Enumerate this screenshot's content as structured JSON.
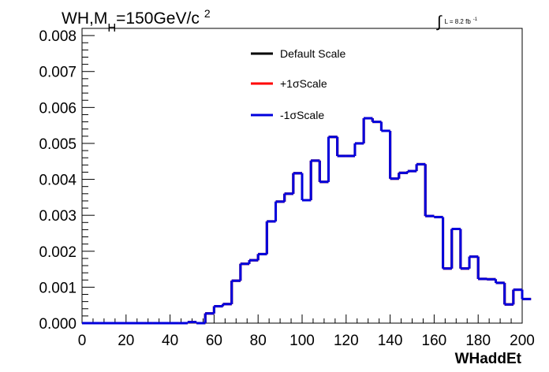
{
  "chart_data": {
    "type": "line",
    "title_parts": {
      "prefix": "WH,M",
      "subscript": "H",
      "main": "=150GeV/c",
      "superscript": "2"
    },
    "luminosity": {
      "integral": "∫",
      "text": "L = 8.2 fb",
      "exponent": "-1"
    },
    "xlabel": "WHaddEt",
    "ylabel": "",
    "xlim": [
      0,
      200
    ],
    "ylim": [
      0,
      0.0082
    ],
    "x_ticks": [
      "0",
      "20",
      "40",
      "60",
      "80",
      "100",
      "120",
      "140",
      "160",
      "180",
      "200"
    ],
    "y_ticks": [
      "0.000",
      "0.001",
      "0.002",
      "0.003",
      "0.004",
      "0.005",
      "0.006",
      "0.007",
      "0.008"
    ],
    "legend_position": "top-center",
    "bin_width": 4,
    "bin_edges_start": 0,
    "series": [
      {
        "name": "Default Scale",
        "color": "#000000",
        "values": [
          0,
          0,
          0,
          0,
          0,
          0,
          0,
          0,
          0,
          0,
          0,
          0,
          3e-05,
          0,
          0.00027,
          0.00047,
          0.00053,
          0.00118,
          0.00165,
          0.00175,
          0.00192,
          0.00283,
          0.00338,
          0.0036,
          0.00417,
          0.00342,
          0.00452,
          0.00393,
          0.00518,
          0.00465,
          0.00465,
          0.005,
          0.0057,
          0.0056,
          0.00535,
          0.00402,
          0.00418,
          0.00423,
          0.00442,
          0.00298,
          0.00295,
          0.00152,
          0.00262,
          0.00152,
          0.00185,
          0.00123,
          0.00122,
          0.00112,
          0.00052,
          0.00093,
          0.00067
        ]
      },
      {
        "name": "+1σScale",
        "color": "#ff0000",
        "values": [
          0,
          0,
          0,
          0,
          0,
          0,
          0,
          0,
          0,
          0,
          0,
          0,
          3e-05,
          0,
          0.00027,
          0.00047,
          0.00053,
          0.00118,
          0.00165,
          0.00175,
          0.00192,
          0.00283,
          0.00338,
          0.0036,
          0.00417,
          0.00342,
          0.00452,
          0.00393,
          0.00518,
          0.00465,
          0.00465,
          0.005,
          0.0057,
          0.0056,
          0.00535,
          0.00402,
          0.00418,
          0.00423,
          0.00442,
          0.00298,
          0.00295,
          0.00152,
          0.00262,
          0.00152,
          0.00185,
          0.00123,
          0.00122,
          0.00112,
          0.00052,
          0.00093,
          0.00067
        ]
      },
      {
        "name": "-1σScale",
        "color": "#0000dd",
        "values": [
          0,
          0,
          0,
          0,
          0,
          0,
          0,
          0,
          0,
          0,
          0,
          0,
          3e-05,
          0,
          0.00027,
          0.00047,
          0.00053,
          0.00118,
          0.00165,
          0.00175,
          0.00192,
          0.00283,
          0.00338,
          0.0036,
          0.00417,
          0.00342,
          0.00452,
          0.00393,
          0.00518,
          0.00465,
          0.00465,
          0.005,
          0.0057,
          0.0056,
          0.00535,
          0.00402,
          0.00418,
          0.00423,
          0.00442,
          0.00298,
          0.00295,
          0.00152,
          0.00262,
          0.00152,
          0.00185,
          0.00123,
          0.00122,
          0.00112,
          0.00052,
          0.00093,
          0.00067
        ]
      }
    ]
  }
}
